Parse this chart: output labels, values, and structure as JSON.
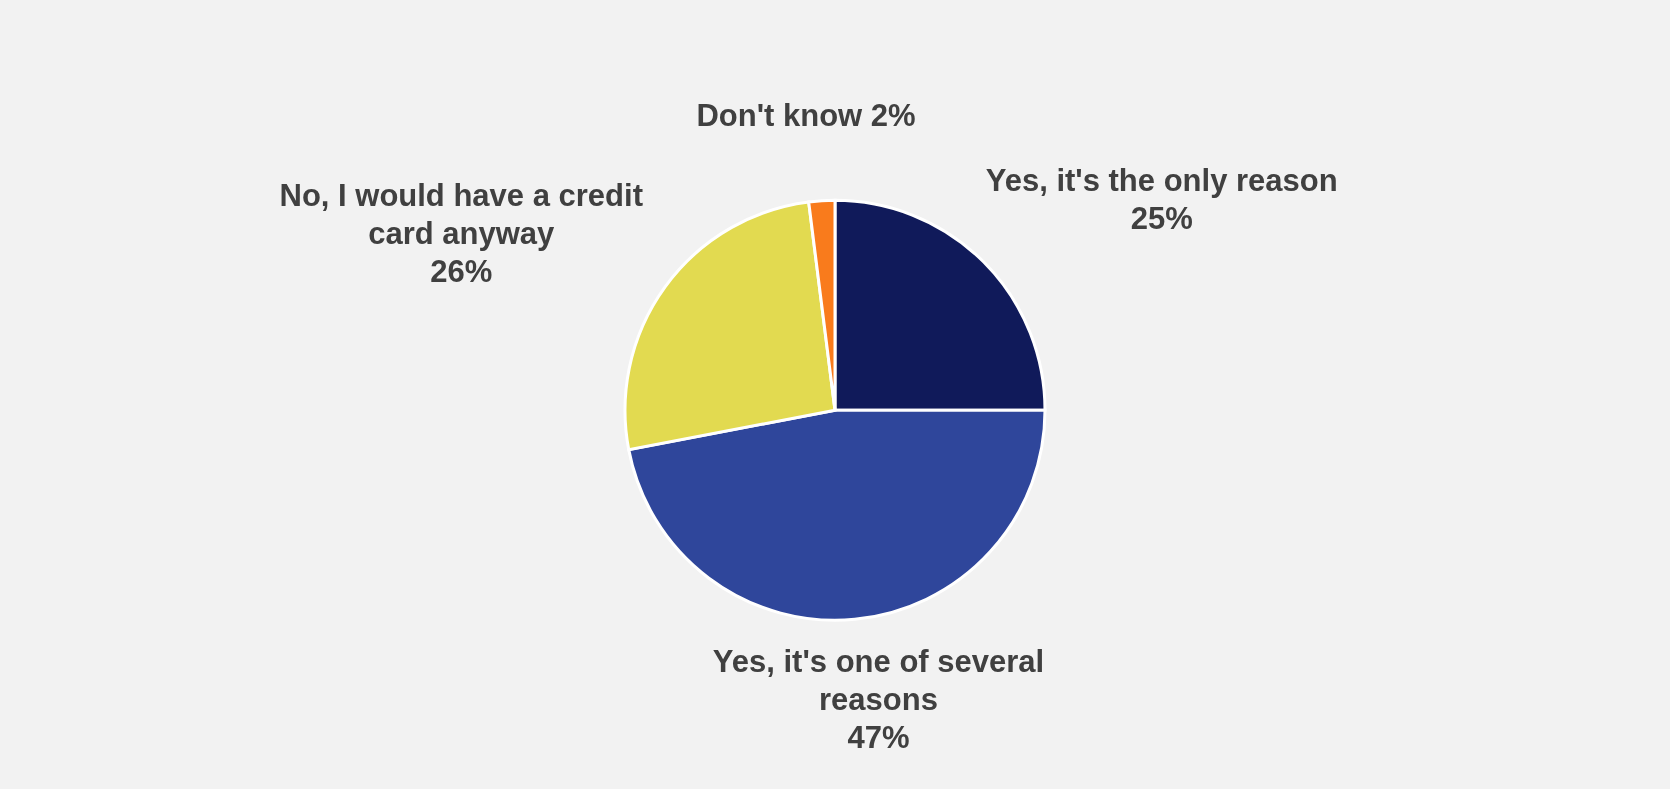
{
  "chart_data": {
    "type": "pie",
    "categories": [
      "Yes, it's the only reason",
      "Yes, it's one of several reasons",
      "No, I would have a credit card anyway",
      "Don't know"
    ],
    "values": [
      25,
      47,
      26,
      2
    ],
    "value_labels": [
      "25%",
      "47%",
      "26%",
      "2%"
    ],
    "colors": [
      "#101a5a",
      "#2f469b",
      "#e2da50",
      "#f97b1c"
    ]
  }
}
